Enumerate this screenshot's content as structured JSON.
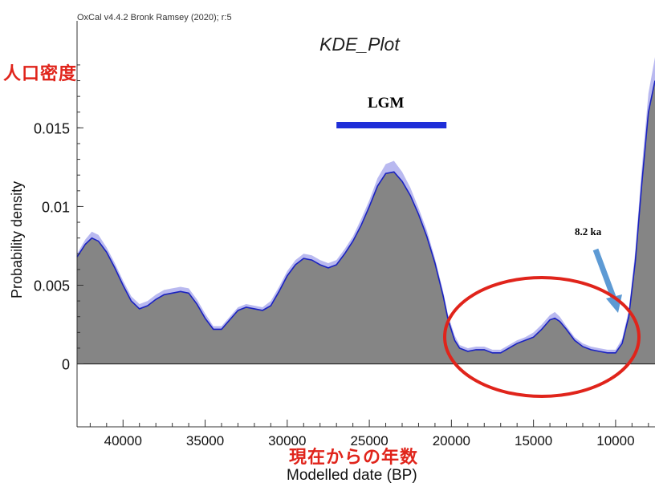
{
  "header": {
    "credit": "OxCal v4.4.2 Bronk Ramsey (2020); r:5",
    "title": "KDE_Plot"
  },
  "annotations": {
    "jp_ylabel": "人口密度",
    "jp_xlabel": "現在からの年数",
    "lgm_label": "LGM",
    "lgm_range": [
      27000,
      20300
    ],
    "ka_label": "8.2 ka"
  },
  "colors": {
    "fill": "#858585",
    "envelope": "#b9b9f0",
    "line": "#1a22c0",
    "lgm_bar": "#1f2fd8",
    "arrow": "#5d9ad4",
    "ellipse": "#e0241b",
    "jp_text": "#e0241b"
  },
  "chart_data": {
    "type": "area",
    "title": "KDE_Plot",
    "xlabel": "Modelled date (BP)",
    "ylabel": "Probability density",
    "xlim": [
      42800,
      7600
    ],
    "ylim": [
      -0.004,
      0.0218
    ],
    "xticks": [
      40000,
      35000,
      30000,
      25000,
      20000,
      15000,
      10000
    ],
    "xtick_labels": [
      "40000",
      "35000",
      "30000",
      "25000",
      "20000",
      "15000",
      "10000"
    ],
    "yticks": [
      0,
      0.005,
      0.01,
      0.015
    ],
    "ytick_labels": [
      "0",
      "0.005",
      "0.01",
      "0.015"
    ],
    "series": [
      {
        "name": "KDE",
        "x": [
          42800,
          42300,
          41900,
          41500,
          41000,
          40500,
          40000,
          39500,
          39000,
          38500,
          38000,
          37500,
          37000,
          36500,
          36000,
          35500,
          35000,
          34500,
          34000,
          33500,
          33000,
          32500,
          32000,
          31500,
          31000,
          30500,
          30000,
          29500,
          29000,
          28500,
          28000,
          27500,
          27000,
          26500,
          26000,
          25500,
          25000,
          24500,
          24000,
          23500,
          23000,
          22500,
          22000,
          21500,
          21000,
          20500,
          20200,
          19800,
          19500,
          19000,
          18500,
          18000,
          17500,
          17000,
          16500,
          16000,
          15500,
          15000,
          14500,
          14000,
          13700,
          13400,
          13000,
          12500,
          12000,
          11500,
          11000,
          10500,
          10000,
          9600,
          9200,
          8800,
          8400,
          8000,
          7600
        ],
        "values": [
          0.0068,
          0.0076,
          0.008,
          0.0078,
          0.0071,
          0.0061,
          0.005,
          0.004,
          0.0035,
          0.0037,
          0.0041,
          0.0044,
          0.0045,
          0.0046,
          0.0045,
          0.0038,
          0.0029,
          0.0022,
          0.0022,
          0.0028,
          0.0034,
          0.0036,
          0.0035,
          0.0034,
          0.0037,
          0.0046,
          0.0056,
          0.0063,
          0.0067,
          0.0066,
          0.0063,
          0.0061,
          0.0063,
          0.007,
          0.0078,
          0.0088,
          0.01,
          0.0113,
          0.0121,
          0.0122,
          0.0116,
          0.0107,
          0.0095,
          0.0081,
          0.0064,
          0.0043,
          0.0028,
          0.0015,
          0.001,
          0.0008,
          0.0009,
          0.0009,
          0.0007,
          0.0007,
          0.001,
          0.0013,
          0.0015,
          0.0017,
          0.0022,
          0.0028,
          0.0029,
          0.0027,
          0.0022,
          0.0015,
          0.0011,
          0.0009,
          0.0008,
          0.0007,
          0.0007,
          0.0013,
          0.003,
          0.0065,
          0.0115,
          0.016,
          0.018
        ],
        "upper": [
          0.007,
          0.0079,
          0.0084,
          0.0082,
          0.0074,
          0.0064,
          0.0053,
          0.0043,
          0.0038,
          0.004,
          0.0044,
          0.0047,
          0.0048,
          0.0049,
          0.0048,
          0.0041,
          0.0032,
          0.0024,
          0.0024,
          0.003,
          0.0036,
          0.0038,
          0.0037,
          0.0036,
          0.004,
          0.0049,
          0.0059,
          0.0066,
          0.007,
          0.0069,
          0.0066,
          0.0064,
          0.0066,
          0.0073,
          0.0081,
          0.0092,
          0.0104,
          0.0118,
          0.0127,
          0.0129,
          0.0122,
          0.0112,
          0.0099,
          0.0085,
          0.0067,
          0.0046,
          0.0031,
          0.0018,
          0.0012,
          0.001,
          0.0011,
          0.0011,
          0.0009,
          0.0009,
          0.0012,
          0.0015,
          0.0017,
          0.002,
          0.0025,
          0.0031,
          0.0033,
          0.003,
          0.0024,
          0.0017,
          0.0013,
          0.0011,
          0.001,
          0.0009,
          0.0009,
          0.0016,
          0.0034,
          0.0072,
          0.0125,
          0.0172,
          0.0195
        ],
        "lower": [
          0.0064,
          0.0072,
          0.0076,
          0.0074,
          0.0066,
          0.0057,
          0.0046,
          0.0036,
          0.0031,
          0.0033,
          0.0037,
          0.004,
          0.0041,
          0.0042,
          0.0041,
          0.0034,
          0.0025,
          0.0019,
          0.0019,
          0.0025,
          0.0031,
          0.0033,
          0.0032,
          0.0031,
          0.0034,
          0.0042,
          0.0052,
          0.0059,
          0.0063,
          0.0062,
          0.0059,
          0.0057,
          0.0059,
          0.0066,
          0.0074,
          0.0084,
          0.0096,
          0.0108,
          0.0116,
          0.0117,
          0.0111,
          0.0102,
          0.009,
          0.0077,
          0.006,
          0.004,
          0.0025,
          0.0013,
          0.0007,
          0.0005,
          0.0006,
          0.0006,
          0.0005,
          0.0005,
          0.0007,
          0.001,
          0.0012,
          0.0014,
          0.0019,
          0.0025,
          0.0026,
          0.0024,
          0.0019,
          0.0012,
          0.0008,
          0.0006,
          0.0005,
          0.0004,
          0.0004,
          0.0009,
          0.0025,
          0.0058,
          0.0105,
          0.0148,
          0.0165
        ]
      }
    ],
    "grid": false,
    "legend": "none"
  }
}
